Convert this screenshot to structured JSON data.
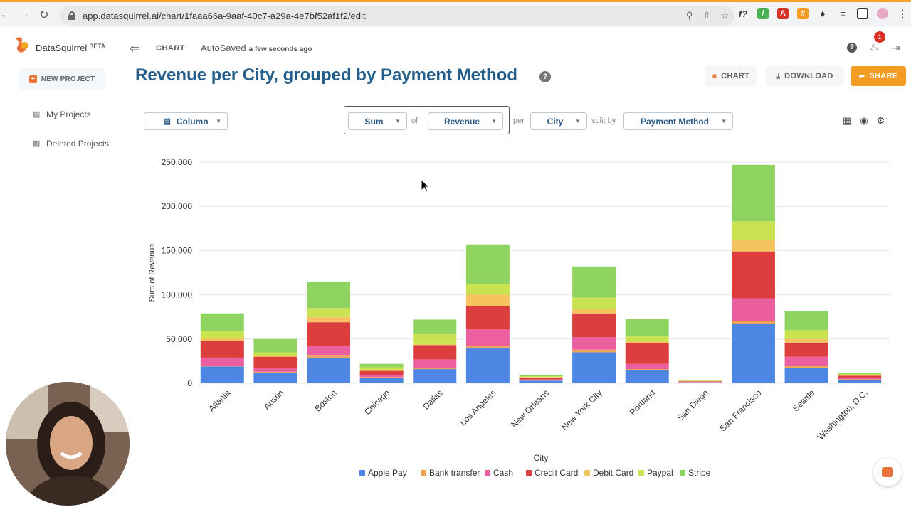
{
  "browser": {
    "url": "app.datasquirrel.ai/chart/1faaa66a-9aaf-40c7-a29a-4e7bf52af1f2/edit"
  },
  "sidebar": {
    "brand": "DataSquirrel",
    "beta": "BETA",
    "new_project": "NEW PROJECT",
    "items": [
      {
        "label": "My Projects",
        "icon": "table-icon"
      },
      {
        "label": "Deleted Projects",
        "icon": "trash-icon"
      }
    ]
  },
  "header": {
    "crumb": "CHART",
    "autosaved": "AutoSaved",
    "autosaved_time": "a few seconds ago",
    "notifications": "1"
  },
  "title": "Revenue per City, grouped by Payment Method",
  "buttons": {
    "chart": "CHART",
    "download": "DOWNLOAD",
    "share": "SHARE"
  },
  "controls": {
    "chart_type": "Column",
    "aggregation": "Sum",
    "of_label": "of",
    "field": "Revenue",
    "per_label": "per",
    "dimension": "City",
    "split_label": "split by",
    "split": "Payment Method"
  },
  "colors": {
    "Apple Pay": "#4e86e4",
    "Bank transfer": "#efa356",
    "Cash": "#eb5fa0",
    "Credit Card": "#dc3d3d",
    "Debit Card": "#f5c45f",
    "Paypal": "#c9e350",
    "Stripe": "#8fd461"
  },
  "chart_data": {
    "type": "bar",
    "stacked": true,
    "xlabel": "City",
    "ylabel": "Sum of Revenue",
    "ylim": [
      0,
      250000
    ],
    "yticks": [
      "0",
      "50,000",
      "100,000",
      "150,000",
      "200,000",
      "250,000"
    ],
    "ytick_values": [
      0,
      50000,
      100000,
      150000,
      200000,
      250000
    ],
    "legend_position": "bottom",
    "categories": [
      "Atlanta",
      "Austin",
      "Boston",
      "Chicago",
      "Dallas",
      "Los Angeles",
      "New Orleans",
      "New York City",
      "Portland",
      "San Diego",
      "San Francisco",
      "Seattle",
      "Washington, D.C."
    ],
    "series": [
      {
        "name": "Apple Pay",
        "values": [
          19000,
          12000,
          29000,
          6000,
          16000,
          40000,
          3000,
          35000,
          15000,
          1000,
          67000,
          17000,
          4000
        ]
      },
      {
        "name": "Bank transfer",
        "values": [
          1000,
          1000,
          3000,
          1000,
          1000,
          2000,
          500,
          3000,
          1000,
          300,
          3000,
          3000,
          500
        ]
      },
      {
        "name": "Cash",
        "values": [
          9000,
          4000,
          10000,
          2000,
          10000,
          19000,
          1000,
          14000,
          6000,
          500,
          26000,
          10000,
          2000
        ]
      },
      {
        "name": "Credit Card",
        "values": [
          19000,
          13000,
          27000,
          5000,
          16000,
          26000,
          2000,
          27000,
          23000,
          500,
          53000,
          16000,
          2000
        ]
      },
      {
        "name": "Debit Card",
        "values": [
          3000,
          1000,
          6000,
          1000,
          1000,
          13000,
          500,
          5000,
          2000,
          300,
          13000,
          4000,
          500
        ]
      },
      {
        "name": "Paypal",
        "values": [
          8000,
          4000,
          10000,
          3000,
          12000,
          12000,
          1000,
          13000,
          6000,
          700,
          21000,
          10000,
          1500
        ]
      },
      {
        "name": "Stripe",
        "values": [
          20000,
          15000,
          30000,
          4000,
          16000,
          45000,
          1500,
          35000,
          20000,
          700,
          64000,
          22000,
          1500
        ]
      }
    ]
  }
}
